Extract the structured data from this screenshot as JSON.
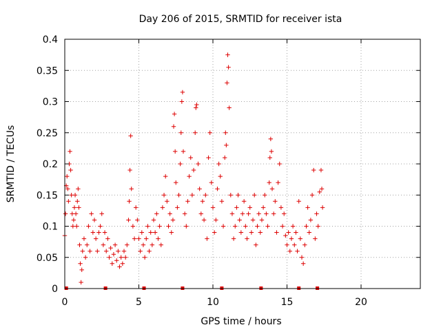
{
  "chart_data": {
    "type": "scatter",
    "title": "Day 206 of 2015, SRMTID for receiver ista",
    "xlabel": "GPS time / hours",
    "ylabel": "SRMTID / TECUs",
    "xlim": [
      0,
      24
    ],
    "ylim": [
      0,
      0.4
    ],
    "x_ticks": [
      0,
      5,
      10,
      15,
      20
    ],
    "x_tick_labels": [
      "0",
      "5",
      "10",
      "15",
      "20"
    ],
    "y_ticks": [
      0,
      0.05,
      0.1,
      0.15,
      0.2,
      0.25,
      0.3,
      0.35,
      0.4
    ],
    "y_tick_labels": [
      "0",
      "0.05",
      "0.1",
      "0.15",
      "0.2",
      "0.25",
      "0.3",
      "0.35",
      "0.4"
    ],
    "grid": true,
    "legend": "none",
    "marker": "plus",
    "color": "#dd0000",
    "series": [
      {
        "points": [
          [
            0.0,
            0.085
          ],
          [
            0.05,
            0.12
          ],
          [
            0.1,
            0.165
          ],
          [
            0.15,
            0.18
          ],
          [
            0.2,
            0.16
          ],
          [
            0.25,
            0.14
          ],
          [
            0.3,
            0.2
          ],
          [
            0.35,
            0.22
          ],
          [
            0.4,
            0.19
          ],
          [
            0.45,
            0.15
          ],
          [
            0.5,
            0.12
          ],
          [
            0.55,
            0.1
          ],
          [
            0.6,
            0.11
          ],
          [
            0.65,
            0.13
          ],
          [
            0.7,
            0.15
          ],
          [
            0.75,
            0.12
          ],
          [
            0.8,
            0.1
          ],
          [
            0.85,
            0.14
          ],
          [
            0.9,
            0.16
          ],
          [
            0.95,
            0.13
          ],
          [
            1.0,
            0.07
          ],
          [
            1.05,
            0.04
          ],
          [
            1.1,
            0.01
          ],
          [
            1.15,
            0.03
          ],
          [
            1.2,
            0.06
          ],
          [
            1.3,
            0.08
          ],
          [
            1.4,
            0.05
          ],
          [
            1.5,
            0.07
          ],
          [
            1.6,
            0.1
          ],
          [
            1.7,
            0.06
          ],
          [
            1.8,
            0.12
          ],
          [
            1.9,
            0.09
          ],
          [
            2.0,
            0.11
          ],
          [
            2.1,
            0.08
          ],
          [
            2.2,
            0.06
          ],
          [
            2.3,
            0.09
          ],
          [
            2.4,
            0.1
          ],
          [
            2.5,
            0.12
          ],
          [
            2.6,
            0.07
          ],
          [
            2.7,
            0.09
          ],
          [
            2.8,
            0.06
          ],
          [
            2.9,
            0.08
          ],
          [
            3.0,
            0.05
          ],
          [
            3.1,
            0.065
          ],
          [
            3.2,
            0.04
          ],
          [
            3.3,
            0.055
          ],
          [
            3.4,
            0.07
          ],
          [
            3.5,
            0.045
          ],
          [
            3.6,
            0.06
          ],
          [
            3.7,
            0.035
          ],
          [
            3.8,
            0.05
          ],
          [
            3.9,
            0.04
          ],
          [
            4.0,
            0.06
          ],
          [
            4.1,
            0.05
          ],
          [
            4.2,
            0.07
          ],
          [
            4.3,
            0.11
          ],
          [
            4.35,
            0.14
          ],
          [
            4.4,
            0.19
          ],
          [
            4.45,
            0.245
          ],
          [
            4.5,
            0.16
          ],
          [
            4.6,
            0.1
          ],
          [
            4.7,
            0.08
          ],
          [
            4.8,
            0.13
          ],
          [
            4.9,
            0.11
          ],
          [
            5.0,
            0.08
          ],
          [
            5.1,
            0.06
          ],
          [
            5.2,
            0.09
          ],
          [
            5.3,
            0.07
          ],
          [
            5.4,
            0.05
          ],
          [
            5.5,
            0.08
          ],
          [
            5.6,
            0.1
          ],
          [
            5.7,
            0.06
          ],
          [
            5.8,
            0.09
          ],
          [
            5.9,
            0.07
          ],
          [
            6.0,
            0.11
          ],
          [
            6.1,
            0.09
          ],
          [
            6.2,
            0.12
          ],
          [
            6.3,
            0.08
          ],
          [
            6.4,
            0.1
          ],
          [
            6.5,
            0.07
          ],
          [
            6.6,
            0.13
          ],
          [
            6.7,
            0.15
          ],
          [
            6.8,
            0.18
          ],
          [
            6.9,
            0.14
          ],
          [
            7.0,
            0.1
          ],
          [
            7.1,
            0.12
          ],
          [
            7.2,
            0.09
          ],
          [
            7.3,
            0.11
          ],
          [
            7.35,
            0.26
          ],
          [
            7.4,
            0.28
          ],
          [
            7.45,
            0.22
          ],
          [
            7.5,
            0.17
          ],
          [
            7.6,
            0.13
          ],
          [
            7.7,
            0.15
          ],
          [
            7.8,
            0.2
          ],
          [
            7.85,
            0.25
          ],
          [
            7.9,
            0.3
          ],
          [
            7.95,
            0.315
          ],
          [
            8.0,
            0.22
          ],
          [
            8.1,
            0.12
          ],
          [
            8.2,
            0.1
          ],
          [
            8.3,
            0.14
          ],
          [
            8.4,
            0.18
          ],
          [
            8.5,
            0.21
          ],
          [
            8.6,
            0.15
          ],
          [
            8.7,
            0.19
          ],
          [
            8.8,
            0.25
          ],
          [
            8.85,
            0.29
          ],
          [
            8.9,
            0.295
          ],
          [
            9.0,
            0.2
          ],
          [
            9.1,
            0.16
          ],
          [
            9.2,
            0.12
          ],
          [
            9.3,
            0.14
          ],
          [
            9.4,
            0.11
          ],
          [
            9.5,
            0.15
          ],
          [
            9.6,
            0.08
          ],
          [
            9.7,
            0.21
          ],
          [
            9.8,
            0.25
          ],
          [
            9.9,
            0.17
          ],
          [
            10.0,
            0.13
          ],
          [
            10.1,
            0.09
          ],
          [
            10.2,
            0.11
          ],
          [
            10.3,
            0.16
          ],
          [
            10.4,
            0.2
          ],
          [
            10.5,
            0.18
          ],
          [
            10.6,
            0.14
          ],
          [
            10.7,
            0.1
          ],
          [
            10.8,
            0.21
          ],
          [
            10.85,
            0.25
          ],
          [
            10.9,
            0.23
          ],
          [
            10.95,
            0.33
          ],
          [
            11.0,
            0.375
          ],
          [
            11.05,
            0.355
          ],
          [
            11.1,
            0.29
          ],
          [
            11.2,
            0.15
          ],
          [
            11.3,
            0.12
          ],
          [
            11.4,
            0.08
          ],
          [
            11.5,
            0.1
          ],
          [
            11.6,
            0.13
          ],
          [
            11.7,
            0.15
          ],
          [
            11.8,
            0.11
          ],
          [
            11.9,
            0.09
          ],
          [
            12.0,
            0.12
          ],
          [
            12.1,
            0.14
          ],
          [
            12.2,
            0.1
          ],
          [
            12.3,
            0.08
          ],
          [
            12.4,
            0.12
          ],
          [
            12.5,
            0.13
          ],
          [
            12.6,
            0.09
          ],
          [
            12.7,
            0.11
          ],
          [
            12.8,
            0.15
          ],
          [
            12.9,
            0.07
          ],
          [
            13.0,
            0.1
          ],
          [
            13.1,
            0.12
          ],
          [
            13.2,
            0.09
          ],
          [
            13.3,
            0.11
          ],
          [
            13.4,
            0.13
          ],
          [
            13.5,
            0.15
          ],
          [
            13.6,
            0.12
          ],
          [
            13.7,
            0.1
          ],
          [
            13.8,
            0.17
          ],
          [
            13.85,
            0.21
          ],
          [
            13.9,
            0.24
          ],
          [
            13.95,
            0.22
          ],
          [
            14.0,
            0.16
          ],
          [
            14.1,
            0.12
          ],
          [
            14.2,
            0.14
          ],
          [
            14.3,
            0.09
          ],
          [
            14.4,
            0.17
          ],
          [
            14.5,
            0.2
          ],
          [
            14.6,
            0.13
          ],
          [
            14.7,
            0.1
          ],
          [
            14.8,
            0.12
          ],
          [
            14.9,
            0.085
          ],
          [
            15.0,
            0.07
          ],
          [
            15.1,
            0.09
          ],
          [
            15.2,
            0.06
          ],
          [
            15.3,
            0.08
          ],
          [
            15.4,
            0.1
          ],
          [
            15.5,
            0.07
          ],
          [
            15.6,
            0.09
          ],
          [
            15.7,
            0.06
          ],
          [
            15.8,
            0.14
          ],
          [
            15.9,
            0.08
          ],
          [
            16.0,
            0.05
          ],
          [
            16.1,
            0.04
          ],
          [
            16.2,
            0.07
          ],
          [
            16.3,
            0.1
          ],
          [
            16.4,
            0.13
          ],
          [
            16.5,
            0.09
          ],
          [
            16.6,
            0.11
          ],
          [
            16.7,
            0.15
          ],
          [
            16.8,
            0.19
          ],
          [
            16.9,
            0.08
          ],
          [
            17.0,
            0.12
          ],
          [
            17.1,
            0.1
          ],
          [
            17.2,
            0.155
          ],
          [
            17.3,
            0.19
          ],
          [
            17.35,
            0.16
          ],
          [
            17.4,
            0.13
          ]
        ]
      }
    ],
    "gap_markers_x": [
      0.1,
      2.75,
      5.35,
      7.95,
      10.6,
      13.25,
      15.8,
      17.05
    ]
  }
}
